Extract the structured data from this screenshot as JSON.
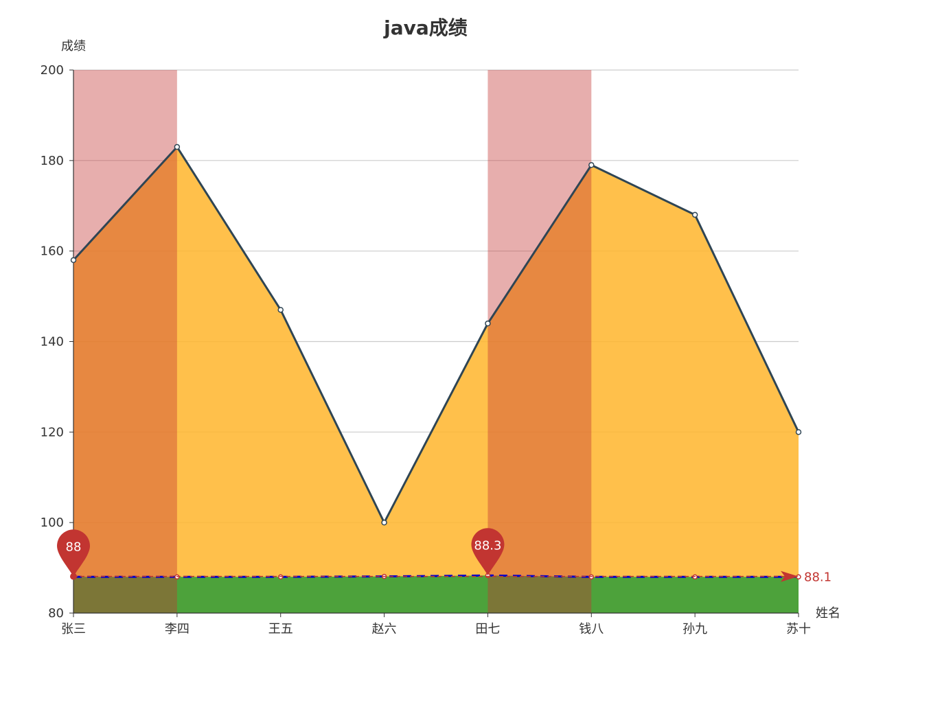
{
  "chart_data": {
    "type": "line",
    "title": "java成绩",
    "ylabel": "成绩",
    "xlabel": "姓名",
    "categories": [
      "张三",
      "李四",
      "王五",
      "赵六",
      "田七",
      "钱八",
      "孙九",
      "苏十"
    ],
    "ylim": [
      80,
      200
    ],
    "yticks": [
      80,
      100,
      120,
      140,
      160,
      180,
      200
    ],
    "series": [
      {
        "values": [
          158,
          183,
          147,
          100,
          144,
          179,
          168,
          120
        ],
        "line_color": "#2f4554",
        "area_color": "#ffb52b"
      },
      {
        "values": [
          88,
          88,
          88,
          88.1,
          88.3,
          88,
          88,
          88
        ],
        "line_color": "#0000cc",
        "area_color": "#3a9f3a",
        "line_style": "dashed"
      }
    ],
    "mark_areas": [
      {
        "from": "张三",
        "to": "李四",
        "color": "#c23531"
      },
      {
        "from": "田七",
        "to": "钱八",
        "color": "#c23531"
      }
    ],
    "mark_points": [
      {
        "category": "张三",
        "value": 88,
        "label": "88"
      },
      {
        "category": "田七",
        "value": 88.3,
        "label": "88.3"
      }
    ],
    "mark_line": {
      "value": 88.1,
      "label": "88.1",
      "color": "#c23531"
    },
    "grid": true
  }
}
